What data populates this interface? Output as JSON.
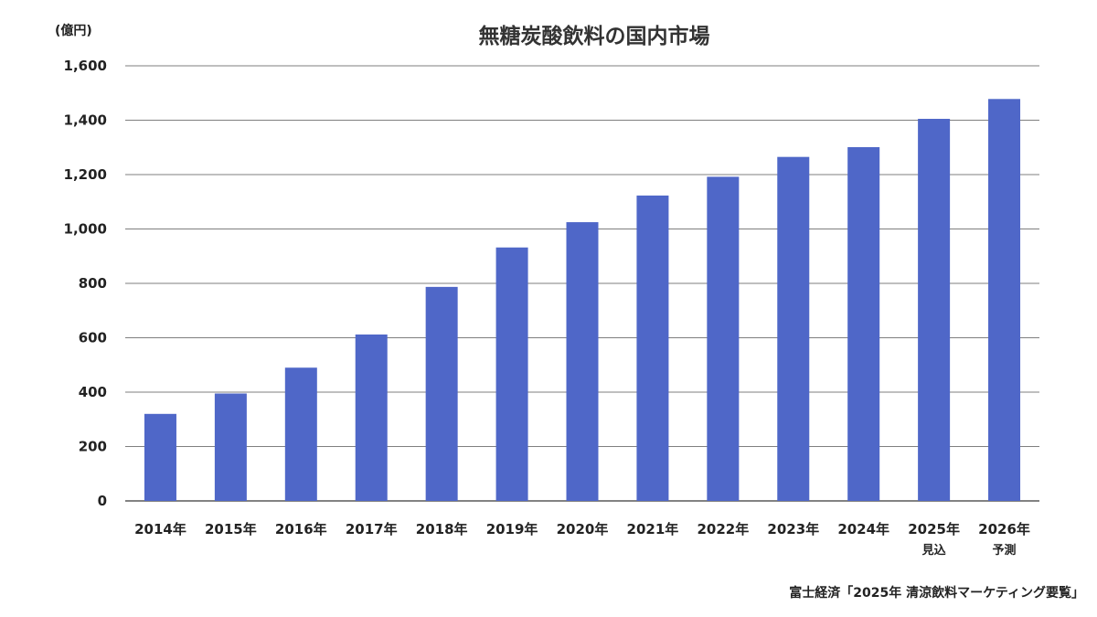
{
  "chart_data": {
    "type": "bar",
    "title": "無糖炭酸飲料の国内市場",
    "ylabel": "(億円)",
    "xlabel": "",
    "categories": [
      "2014年",
      "2015年",
      "2016年",
      "2017年",
      "2018年",
      "2019年",
      "2020年",
      "2021年",
      "2022年",
      "2023年",
      "2024年",
      "2025年",
      "2026年"
    ],
    "category_notes": [
      "",
      "",
      "",
      "",
      "",
      "",
      "",
      "",
      "",
      "",
      "",
      "見込",
      "予測"
    ],
    "values": [
      320,
      395,
      490,
      612,
      787,
      932,
      1025,
      1123,
      1192,
      1265,
      1301,
      1405,
      1478
    ],
    "ylim": [
      0,
      1600
    ],
    "yticks": [
      "0",
      "200",
      "400",
      "600",
      "800",
      "1,000",
      "1,200",
      "1,400",
      "1,600"
    ],
    "grid": true,
    "bar_color": "#4F67C8",
    "source": "富士経済「2025年 清涼飲料マーケティング要覧」"
  }
}
